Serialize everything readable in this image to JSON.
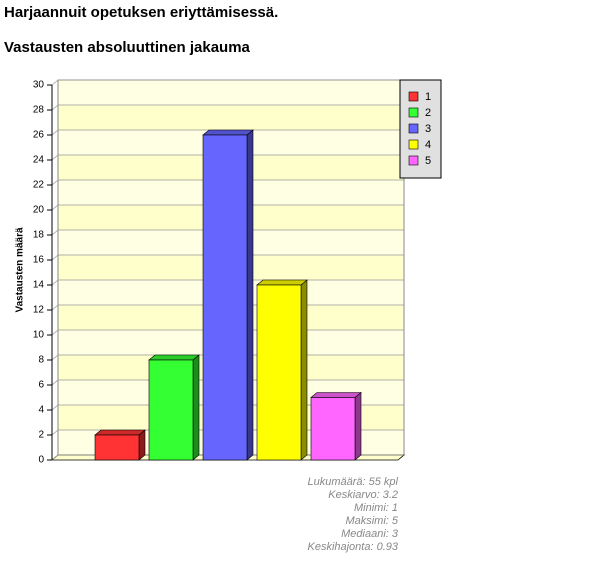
{
  "chart_data": {
    "type": "bar3d",
    "title": "Harjaannuit opetuksen eriyttämisessä.",
    "subtitle": "Vastausten absoluuttinen jakauma",
    "y_label": "Vastausten määrä",
    "categories": [
      "1",
      "2",
      "3",
      "4",
      "5"
    ],
    "values": [
      2,
      8,
      26,
      14,
      5
    ],
    "colors": [
      "#ff3333",
      "#33ff33",
      "#6666ff",
      "#ffff00",
      "#ff66ff"
    ],
    "ylim": [
      0,
      30
    ],
    "yticks": [
      0,
      2,
      4,
      6,
      8,
      10,
      12,
      14,
      16,
      18,
      20,
      22,
      24,
      26,
      28,
      30
    ],
    "grid": true,
    "legend": "top-right",
    "stats": [
      "Lukumäärä: 55 kpl",
      "Keskiarvo: 3.2",
      "Minimi: 1",
      "Maksimi: 5",
      "Mediaani: 3",
      "Keskihajonta: 0.93"
    ]
  }
}
